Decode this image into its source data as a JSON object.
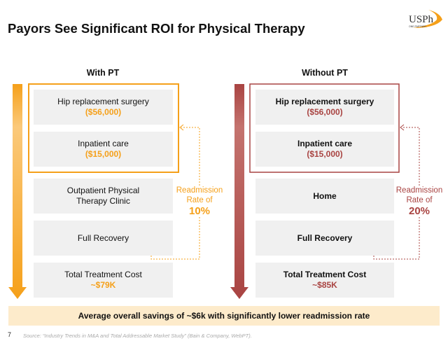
{
  "title": "Payors See Significant ROI for Physical Therapy",
  "logo": {
    "text": "USPh",
    "sub": "ONE PARTNER"
  },
  "colors": {
    "orange": "#F5A01A",
    "red": "#A94442",
    "banner": "#FDEBCB"
  },
  "with_pt": {
    "heading": "With PT",
    "boxes": [
      {
        "label": "Hip replacement surgery",
        "amount": "($56,000)"
      },
      {
        "label": "Inpatient care",
        "amount": "($15,000)"
      },
      {
        "label": "Outpatient Physical Therapy Clinic"
      },
      {
        "label": "Full Recovery"
      },
      {
        "label": "Total Treatment Cost",
        "amount": "~$79K"
      }
    ],
    "readmission": {
      "line1": "Readmission",
      "line2": "Rate of",
      "value": "10%"
    }
  },
  "without_pt": {
    "heading": "Without PT",
    "boxes": [
      {
        "label": "Hip replacement surgery",
        "amount": "($56,000)"
      },
      {
        "label": "Inpatient care",
        "amount": "($15,000)"
      },
      {
        "label": "Home"
      },
      {
        "label": "Full Recovery"
      },
      {
        "label": "Total Treatment Cost",
        "amount": "~$85K"
      }
    ],
    "readmission": {
      "line1": "Readmission",
      "line2": "Rate of",
      "value": "20%"
    }
  },
  "banner": "Average overall savings of ~$6k with significantly lower readmission rate",
  "page_number": "7",
  "source": "Source: “Industry Trends in M&A and Total Addressable Market Study” (Bain & Company, WebPT)."
}
